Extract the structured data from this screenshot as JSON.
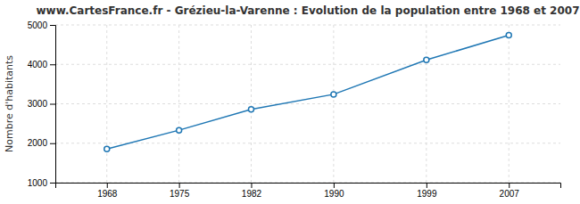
{
  "chart_data": {
    "type": "line",
    "title": "www.CartesFrance.fr - Grézieu-la-Varenne : Evolution de la population entre 1968 et 2007",
    "y_label": "Nombre d'habitants",
    "x": [
      1968,
      1975,
      1982,
      1990,
      1999,
      2007
    ],
    "values": [
      1851,
      2330,
      2857,
      3240,
      4112,
      4740
    ],
    "xlim": [
      1963,
      2012
    ],
    "ylim": [
      1000,
      5000
    ],
    "xticks": [
      1968,
      1975,
      1982,
      1990,
      1999,
      2007
    ],
    "yticks": [
      1000,
      2000,
      3000,
      4000,
      5000
    ],
    "marker": "circle",
    "grid": true
  }
}
